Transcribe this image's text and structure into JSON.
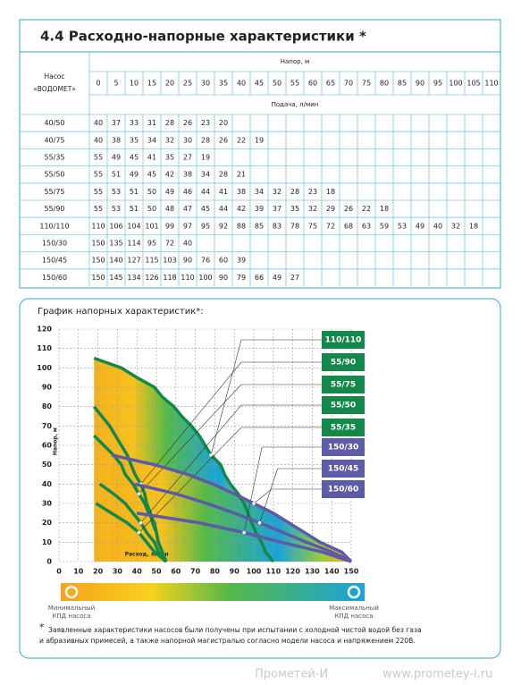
{
  "header": {
    "title": "4.4 Расходно-напорные характеристики *"
  },
  "table": {
    "pump_header": [
      "Насос",
      "«ВОДОМЕТ»"
    ],
    "head_label": "Напор, м",
    "flow_label": "Подача, л/мин",
    "heads": [
      0,
      5,
      10,
      15,
      20,
      25,
      30,
      35,
      40,
      45,
      50,
      55,
      60,
      65,
      70,
      75,
      80,
      85,
      90,
      95,
      100,
      105,
      110
    ],
    "rows": [
      {
        "name": "40/50",
        "values": [
          40,
          37,
          33,
          31,
          28,
          26,
          23,
          20
        ]
      },
      {
        "name": "40/75",
        "values": [
          40,
          38,
          35,
          34,
          32,
          30,
          28,
          26,
          22,
          19
        ]
      },
      {
        "name": "55/35",
        "values": [
          55,
          49,
          45,
          41,
          35,
          27,
          19
        ]
      },
      {
        "name": "55/50",
        "values": [
          55,
          51,
          49,
          45,
          42,
          38,
          34,
          28,
          21
        ]
      },
      {
        "name": "55/75",
        "values": [
          55,
          53,
          51,
          50,
          49,
          46,
          44,
          41,
          38,
          34,
          32,
          28,
          23,
          18
        ]
      },
      {
        "name": "55/90",
        "values": [
          55,
          53,
          51,
          50,
          48,
          47,
          45,
          44,
          42,
          39,
          37,
          35,
          32,
          29,
          26,
          22,
          18
        ]
      },
      {
        "name": "110/110",
        "values": [
          110,
          106,
          104,
          101,
          99,
          97,
          95,
          92,
          88,
          85,
          83,
          78,
          75,
          72,
          68,
          63,
          59,
          53,
          49,
          40,
          32,
          18
        ]
      },
      {
        "name": "150/30",
        "values": [
          150,
          135,
          114,
          95,
          72,
          40
        ]
      },
      {
        "name": "150/45",
        "values": [
          150,
          140,
          127,
          115,
          103,
          90,
          76,
          60,
          39
        ]
      },
      {
        "name": "150/60",
        "values": [
          150,
          145,
          134,
          126,
          118,
          110,
          100,
          90,
          79,
          66,
          49,
          27
        ]
      }
    ]
  },
  "chart": {
    "title": "График напорных характеристик*:",
    "ylabel": "Напор, м",
    "xlabel": "Расход, л/мин",
    "xlim": [
      0,
      150
    ],
    "ylim": [
      0,
      120
    ],
    "xticks": [
      0,
      10,
      20,
      30,
      40,
      50,
      60,
      70,
      80,
      90,
      100,
      110,
      120,
      130,
      140,
      150
    ],
    "yticks": [
      0,
      10,
      20,
      30,
      40,
      50,
      60,
      70,
      80,
      90,
      100,
      110,
      120
    ],
    "grid": true,
    "series": [
      {
        "name": "110/110",
        "color": "#14874a"
      },
      {
        "name": "55/90",
        "color": "#14874a"
      },
      {
        "name": "55/75",
        "color": "#14874a"
      },
      {
        "name": "55/50",
        "color": "#14874a"
      },
      {
        "name": "55/35",
        "color": "#14874a"
      },
      {
        "name": "150/30",
        "color": "#5d5aa6"
      },
      {
        "name": "150/45",
        "color": "#5d5aa6"
      },
      {
        "name": "150/60",
        "color": "#5d5aa6"
      }
    ],
    "scale_min": [
      "Минимальный",
      "КПД насоса"
    ],
    "scale_max": [
      "Максимальный",
      "КПД насоса"
    ]
  },
  "footnote": [
    "*",
    "Заявленные характеристики насосов были получены при испытании с холодной чистой водой без газа",
    "и абразивных примесей, а также напорной магистралью согласно модели насоса и напряжением  220В."
  ],
  "footer": {
    "brand": "Прометей-И",
    "url": "www.prometey-i.ru"
  }
}
